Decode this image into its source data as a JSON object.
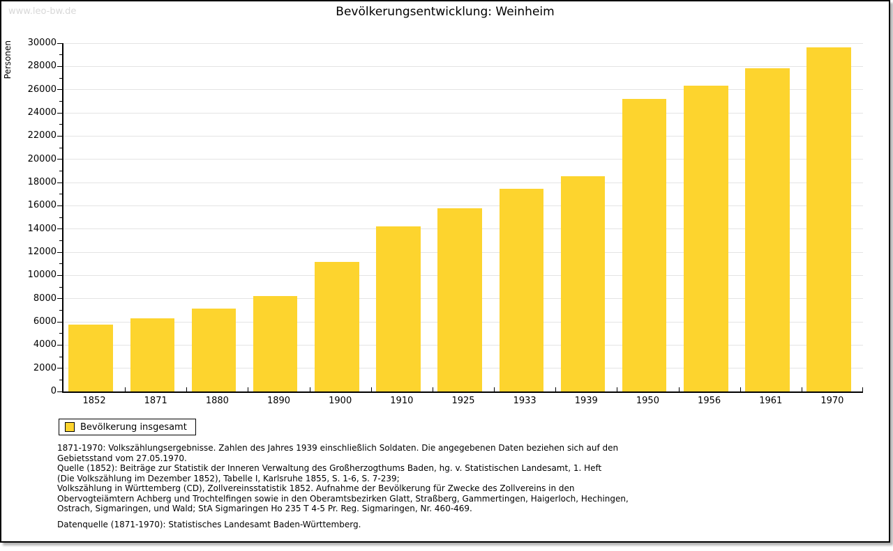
{
  "page": {
    "watermark": "www.leo-bw.de",
    "title": "Bevölkerungsentwicklung: Weinheim"
  },
  "chart_data": {
    "type": "bar",
    "title": "Bevölkerungsentwicklung: Weinheim",
    "xlabel": "",
    "ylabel": "Personen",
    "ylim": [
      0,
      30000
    ],
    "ytick_step": 2000,
    "minor_ytick_step": 1000,
    "grid": "horizontal-major",
    "legend_position": "bottom-left",
    "categories": [
      "1852",
      "1871",
      "1880",
      "1890",
      "1900",
      "1910",
      "1925",
      "1933",
      "1939",
      "1950",
      "1956",
      "1961",
      "1970"
    ],
    "series": [
      {
        "name": "Bevölkerung insgesamt",
        "values": [
          5750,
          6300,
          7150,
          8250,
          11150,
          14200,
          15800,
          17450,
          18550,
          25200,
          26350,
          27850,
          29650
        ]
      }
    ]
  },
  "legend": {
    "label": "Bevölkerung insgesamt"
  },
  "footer": {
    "lines": [
      "1871-1970: Volkszählungsergebnisse. Zahlen des Jahres 1939 einschließlich Soldaten. Die angegebenen Daten beziehen sich auf den",
      "Gebietsstand vom 27.05.1970.",
      "Quelle (1852): Beiträge zur Statistik der Inneren Verwaltung des Großherzogthums Baden, hg. v. Statistischen Landesamt, 1. Heft",
      "(Die Volkszählung im Dezember 1852), Tabelle I, Karlsruhe 1855, S. 1-6, S. 7-239;",
      "Volkszählung in Württemberg (CD), Zollvereinsstatistik 1852. Aufnahme der Bevölkerung für Zwecke des Zollvereins in den",
      "Obervogteiämtern Achberg und Trochtelfingen sowie in den Oberamtsbezirken Glatt, Straßberg, Gammertingen, Haigerloch, Hechingen,",
      "Ostrach, Sigmaringen, und Wald; StA Sigmaringen Ho 235 T 4-5 Pr. Reg. Sigmaringen, Nr. 460-469."
    ],
    "datasource": "Datenquelle (1871-1970): Statistisches Landesamt Baden-Württemberg."
  },
  "colors": {
    "bar": "#FDD42E",
    "grid": "#E4E4E4",
    "axis": "#000000",
    "watermark": "#D8D8D8",
    "background": "#FFFFFF"
  }
}
